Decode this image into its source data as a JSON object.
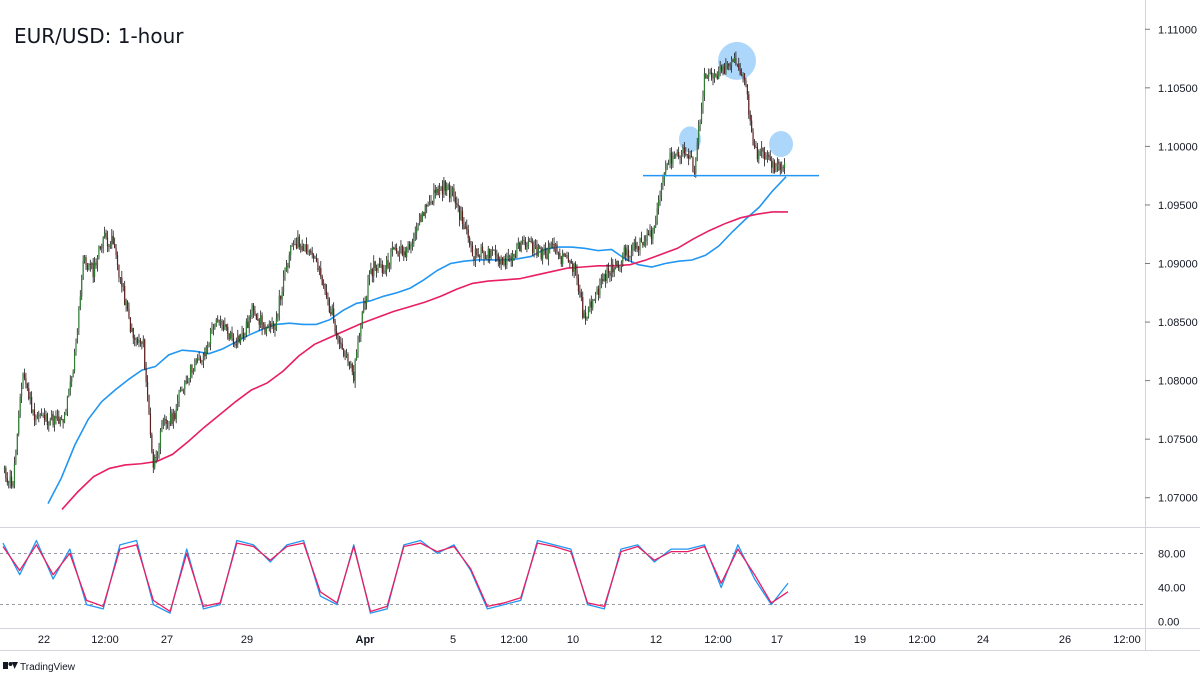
{
  "chart_data": {
    "type": "candlestick",
    "title": "EUR/USD: 1-hour",
    "price_axis": {
      "ylim": [
        1.0675,
        1.1125
      ],
      "ticks": [
        {
          "v": 1.07,
          "label": "1.07000"
        },
        {
          "v": 1.075,
          "label": "1.07500"
        },
        {
          "v": 1.08,
          "label": "1.08000"
        },
        {
          "v": 1.085,
          "label": "1.08500"
        },
        {
          "v": 1.09,
          "label": "1.09000"
        },
        {
          "v": 1.095,
          "label": "1.09500"
        },
        {
          "v": 1.1,
          "label": "1.10000"
        },
        {
          "v": 1.105,
          "label": "1.10500"
        },
        {
          "v": 1.11,
          "label": "1.11000"
        }
      ]
    },
    "x_axis": {
      "labels": [
        "22",
        "12:00",
        "27",
        "29",
        "Apr",
        "5",
        "12:00",
        "10",
        "12",
        "12:00",
        "17",
        "19",
        "12:00",
        "24",
        "26",
        "12:00"
      ],
      "bold": [
        false,
        false,
        false,
        false,
        true,
        false,
        false,
        false,
        false,
        false,
        false,
        false,
        false,
        false,
        false,
        false
      ]
    },
    "colors": {
      "up": "#2e7d32",
      "down": "#5d1f1f",
      "ema_fast": "#2196f3",
      "ema_slow": "#e91e63",
      "stoch_k": "#2196f3",
      "stoch_d": "#e91e63",
      "neckline": "#2196f3",
      "highlight": "#90caf9"
    },
    "closes": [
      1.0722,
      1.0712,
      1.0808,
      1.0772,
      1.0768,
      1.0767,
      1.0763,
      1.0808,
      1.0902,
      1.0894,
      1.0923,
      1.0917,
      1.0875,
      1.0835,
      1.083,
      1.0727,
      1.0762,
      1.0769,
      1.0797,
      1.0813,
      1.0818,
      1.0848,
      1.0847,
      1.0835,
      1.0838,
      1.0863,
      1.0845,
      1.0843,
      1.0885,
      1.0919,
      1.0916,
      1.0907,
      1.0879,
      1.0852,
      1.0824,
      1.0803,
      1.0867,
      1.0899,
      1.0895,
      1.0912,
      1.0909,
      1.0925,
      1.0945,
      1.0959,
      1.0966,
      1.0958,
      1.0932,
      1.0908,
      1.0909,
      1.0906,
      1.0903,
      1.0908,
      1.0918,
      1.0913,
      1.0908,
      1.0913,
      1.0902,
      1.0897,
      1.0853,
      1.0871,
      1.0888,
      1.0897,
      1.0908,
      1.0913,
      1.0918,
      1.093,
      1.0983,
      1.0993,
      1.0996,
      1.0981,
      1.1058,
      1.1058,
      1.1066,
      1.1072,
      1.106,
      1.0995,
      1.0993,
      1.0981,
      1.0986
    ],
    "ema_fast": [
      1.0695,
      1.0717,
      1.0745,
      1.0767,
      1.0782,
      1.0792,
      1.0801,
      1.0809,
      1.0812,
      1.0822,
      1.0826,
      1.0825,
      1.0823,
      1.0827,
      1.0833,
      1.0839,
      1.0844,
      1.0848,
      1.0849,
      1.0848,
      1.0848,
      1.0852,
      1.086,
      1.0866,
      1.0868,
      1.0872,
      1.0875,
      1.0879,
      1.0886,
      1.0894,
      1.09,
      1.0902,
      1.0903,
      1.0903,
      1.0903,
      1.0904,
      1.0906,
      1.0912,
      1.0914,
      1.0914,
      1.0913,
      1.0911,
      1.0912,
      1.0904,
      1.0899,
      1.0897,
      1.09,
      1.0902,
      1.0903,
      1.0907,
      1.0915,
      1.0927,
      1.0938,
      1.0948,
      1.0962,
      1.0974
    ],
    "ema_slow": [
      1.069,
      1.0705,
      1.0718,
      1.0725,
      1.0728,
      1.0729,
      1.0731,
      1.0737,
      1.0748,
      1.076,
      1.0771,
      1.0782,
      1.0792,
      1.0798,
      1.0808,
      1.0821,
      1.0831,
      1.0837,
      1.0843,
      1.0849,
      1.0854,
      1.0859,
      1.0863,
      1.0867,
      1.0872,
      1.0878,
      1.0883,
      1.0885,
      1.0886,
      1.0887,
      1.089,
      1.0893,
      1.0896,
      1.0897,
      1.0898,
      1.0898,
      1.0899,
      1.0903,
      1.0908,
      1.0913,
      1.0921,
      1.0928,
      1.0934,
      1.0939,
      1.0942,
      1.0944,
      1.0944
    ],
    "neckline": 1.0975,
    "stochastic": {
      "ylim": [
        -5,
        105
      ],
      "levels": [
        20,
        80
      ],
      "ticks": [
        {
          "v": 0,
          "label": "0.00"
        },
        {
          "v": 40,
          "label": "40.00"
        },
        {
          "v": 80,
          "label": "80.00"
        }
      ],
      "k": [
        92,
        55,
        95,
        50,
        85,
        20,
        15,
        90,
        95,
        20,
        10,
        85,
        15,
        20,
        95,
        90,
        70,
        90,
        95,
        30,
        20,
        90,
        10,
        15,
        90,
        95,
        80,
        90,
        60,
        15,
        20,
        25,
        95,
        90,
        85,
        20,
        15,
        85,
        90,
        70,
        85,
        85,
        90,
        40,
        90,
        50,
        20,
        45
      ],
      "d": [
        88,
        60,
        90,
        55,
        80,
        25,
        18,
        85,
        90,
        25,
        12,
        80,
        18,
        22,
        92,
        88,
        72,
        88,
        92,
        35,
        22,
        88,
        12,
        18,
        88,
        92,
        82,
        88,
        62,
        18,
        22,
        28,
        92,
        88,
        82,
        22,
        18,
        82,
        88,
        72,
        82,
        82,
        88,
        45,
        85,
        55,
        22,
        35
      ]
    }
  }
}
